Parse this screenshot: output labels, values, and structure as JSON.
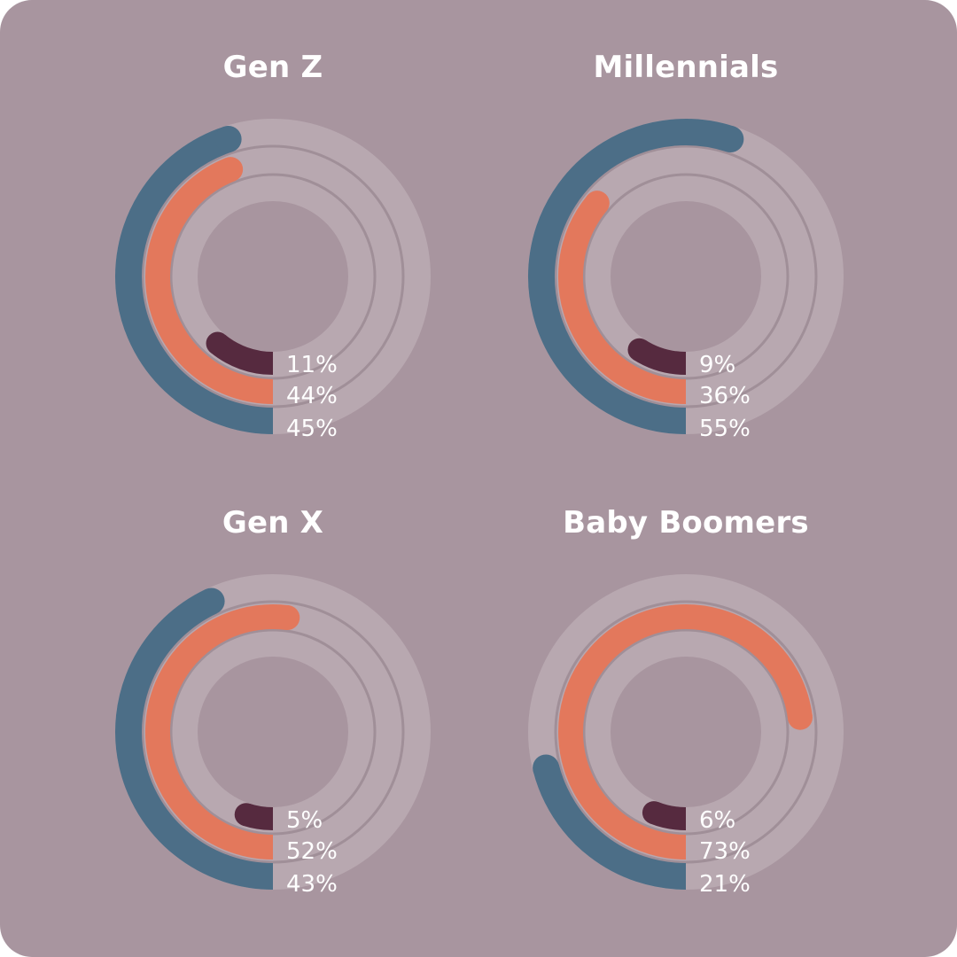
{
  "colors": {
    "background": "#a8959f",
    "track": "#b8a8b0",
    "separator": "#a08f98",
    "series": [
      "#562a3f",
      "#e3785c",
      "#4c6e87"
    ]
  },
  "chart_data": {
    "type": "radial-bar",
    "series_order": [
      "inner",
      "middle",
      "outer"
    ],
    "panels": [
      {
        "title": "Gen Z",
        "values": [
          11,
          44,
          45
        ],
        "labels": [
          "11%",
          "44%",
          "45%"
        ]
      },
      {
        "title": "Millennials",
        "values": [
          9,
          36,
          55
        ],
        "labels": [
          "9%",
          "36%",
          "55%"
        ]
      },
      {
        "title": "Gen X",
        "values": [
          5,
          52,
          43
        ],
        "labels": [
          "5%",
          "52%",
          "43%"
        ]
      },
      {
        "title": "Baby Boomers",
        "values": [
          6,
          73,
          21
        ],
        "labels": [
          "6%",
          "73%",
          "21%"
        ]
      }
    ]
  }
}
